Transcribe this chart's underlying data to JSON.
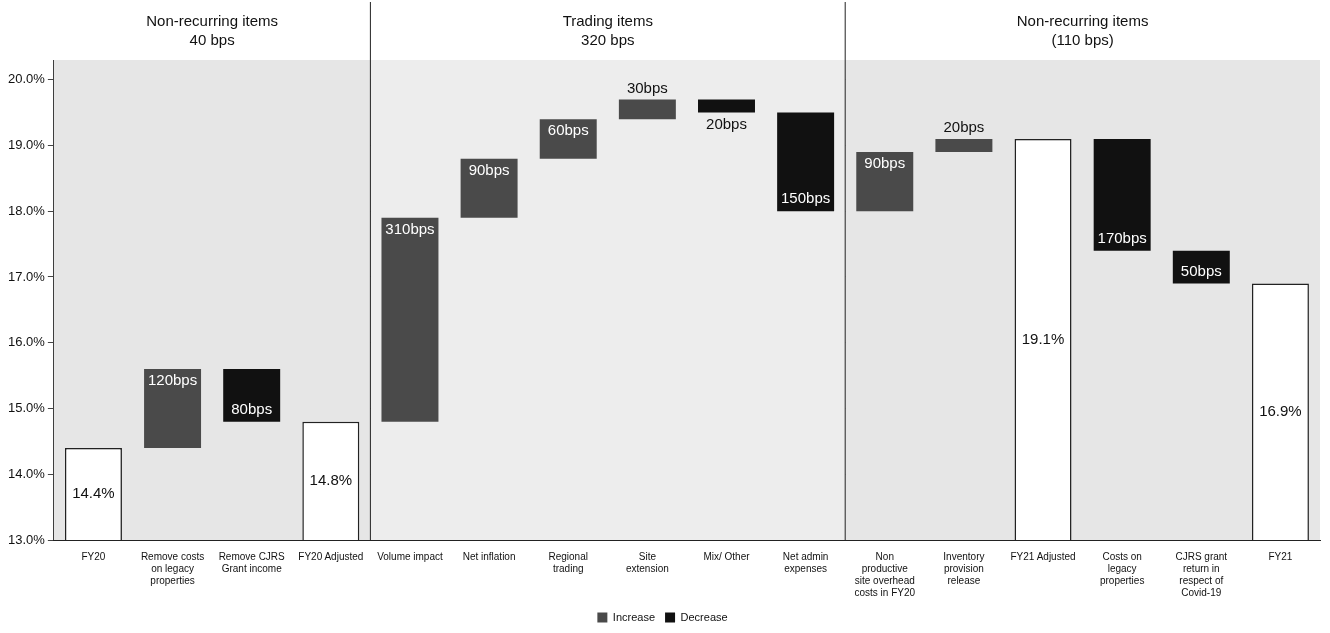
{
  "chart_data": {
    "type": "bar",
    "categories": [
      "FY20",
      "Remove costs on legacy properties",
      "Remove CJRS Grant income",
      "FY20 Adjusted",
      "Volume impact",
      "Net inflation",
      "Regional trading",
      "Site extension",
      "Mix/ Other",
      "Net admin expenses",
      "Non productive site overhead costs in FY20",
      "Inventory provision release",
      "FY21 Adjusted",
      "Costs on legacy properties",
      "CJRS grant return in respect of Covid-19",
      "FY21"
    ],
    "series": [
      {
        "name": "Increase",
        "color": "#4a4a4a",
        "values": [
          null,
          1.2,
          null,
          null,
          3.1,
          0.9,
          0.6,
          0.3,
          null,
          null,
          0.9,
          0.2,
          null,
          null,
          null,
          null
        ],
        "base": [
          null,
          14.4,
          null,
          null,
          14.8,
          17.9,
          18.8,
          19.4,
          null,
          null,
          18.0,
          18.9,
          null,
          null,
          null,
          null
        ]
      },
      {
        "name": "Decrease",
        "color": "#111111",
        "values": [
          null,
          null,
          -0.8,
          null,
          null,
          null,
          null,
          null,
          -0.2,
          -1.5,
          null,
          null,
          null,
          -1.7,
          -0.5,
          null
        ],
        "base": [
          null,
          null,
          15.6,
          null,
          null,
          null,
          null,
          null,
          19.7,
          19.5,
          null,
          null,
          null,
          19.1,
          17.4,
          null
        ]
      },
      {
        "color": "#ffffff",
        "values": [
          14.4,
          null,
          null,
          14.8,
          null,
          null,
          null,
          null,
          null,
          null,
          null,
          null,
          19.1,
          null,
          null,
          16.9
        ],
        "value_labels": [
          "14.4%",
          null,
          null,
          "14.8%",
          null,
          null,
          null,
          null,
          null,
          null,
          null,
          null,
          "19.1%",
          null,
          null,
          "16.9%"
        ]
      }
    ],
    "annotations": [
      {
        "text": "120bps",
        "x": "Remove costs on legacy properties",
        "y": 15.6
      },
      {
        "text": "80bps",
        "x": "Remove CJRS Grant income",
        "y": 14.8
      },
      {
        "text": "310bps",
        "x": "Volume impact",
        "y": 17.9
      },
      {
        "text": "90bps",
        "x": "Net inflation",
        "y": 18.8
      },
      {
        "text": "60bps",
        "x": "Regional trading",
        "y": 19.4
      },
      {
        "text": "30bps",
        "x": "Site extension",
        "y": 19.7
      },
      {
        "text": "20bps",
        "x": "Mix/ Other",
        "y": 19.5
      },
      {
        "text": "150bps",
        "x": "Net admin expenses",
        "y": 18.0
      },
      {
        "text": "90bps",
        "x": "Non productive site overhead costs in FY20",
        "y": 18.9
      },
      {
        "text": "20bps",
        "x": "Inventory provision release",
        "y": 19.1
      },
      {
        "text": "170bps",
        "x": "Costs on legacy properties",
        "y": 17.4
      },
      {
        "text": "50bps",
        "x": "CJRS grant return in respect of Covid-19",
        "y": 16.9
      }
    ],
    "bands": [
      {
        "axis": "x",
        "from": "FY20",
        "to": "FY20 Adjusted",
        "label": "Non-recurring items\n40 bps",
        "color": "#e6e6e6"
      },
      {
        "axis": "x",
        "from": "Volume impact",
        "to": "Net admin expenses",
        "label": "Trading items\n320 bps",
        "color": "#ededed"
      },
      {
        "axis": "x",
        "from": "Non productive site overhead costs in FY20",
        "to": "FY21",
        "label": "Non-recurring items\n(110 bps)",
        "color": "#e6e6e6"
      }
    ],
    "ylim": [
      13,
      20.3
    ],
    "yticks": [
      {
        "value": 13,
        "label": "13.0%"
      },
      {
        "value": 14,
        "label": "14.0%"
      },
      {
        "value": 15,
        "label": "15.0%"
      },
      {
        "value": 16,
        "label": "16.0%"
      },
      {
        "value": 17,
        "label": "17.0%"
      },
      {
        "value": 18,
        "label": "18.0%"
      },
      {
        "value": 19,
        "label": "19.0%"
      },
      {
        "value": 20,
        "label": "20.0%"
      }
    ],
    "grid": "y",
    "legend": "bottom"
  }
}
